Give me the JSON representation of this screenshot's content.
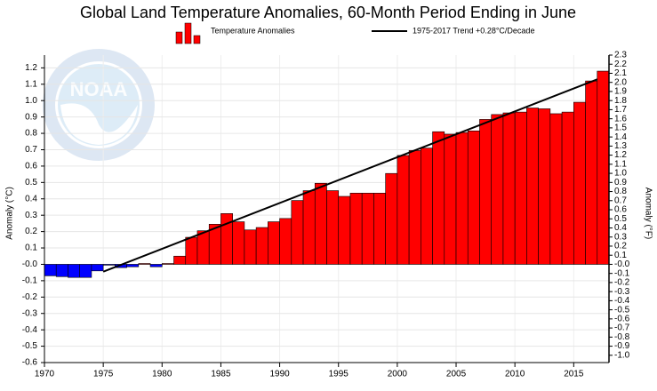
{
  "chart_data": {
    "type": "bar",
    "title": "Global Land Temperature Anomalies, 60-Month Period Ending in June",
    "watermark": "NOAA",
    "ylabel": "Anomaly (°C)",
    "y2label": "Anomaly (°F)",
    "x": [
      1970,
      1971,
      1972,
      1973,
      1974,
      1975,
      1976,
      1977,
      1978,
      1979,
      1980,
      1981,
      1982,
      1983,
      1984,
      1985,
      1986,
      1987,
      1988,
      1989,
      1990,
      1991,
      1992,
      1993,
      1994,
      1995,
      1996,
      1997,
      1998,
      1999,
      2000,
      2001,
      2002,
      2003,
      2004,
      2005,
      2006,
      2007,
      2008,
      2009,
      2010,
      2011,
      2012,
      2013,
      2014,
      2015,
      2016,
      2017
    ],
    "series": [
      {
        "name": "Temperature Anomalies",
        "color": "#ff0000",
        "negative_color": "#0000ff",
        "values": [
          -0.07,
          -0.075,
          -0.08,
          -0.08,
          -0.04,
          -0.005,
          -0.02,
          -0.015,
          0.005,
          -0.015,
          0.005,
          0.05,
          0.165,
          0.205,
          0.245,
          0.31,
          0.26,
          0.21,
          0.225,
          0.26,
          0.28,
          0.39,
          0.45,
          0.495,
          0.45,
          0.415,
          0.435,
          0.435,
          0.435,
          0.555,
          0.665,
          0.695,
          0.71,
          0.81,
          0.795,
          0.805,
          0.815,
          0.885,
          0.915,
          0.925,
          0.93,
          0.955,
          0.95,
          0.92,
          0.93,
          0.99,
          1.12,
          1.18
        ]
      }
    ],
    "trend": {
      "name": "1975-2017 Trend +0.28°C/Decade",
      "color": "#000000",
      "x": [
        1975,
        2017
      ],
      "values": [
        -0.045,
        1.13
      ]
    },
    "xlim": [
      1970,
      2018
    ],
    "xticks": [
      1970,
      1975,
      1980,
      1985,
      1990,
      1995,
      2000,
      2005,
      2010,
      2015
    ],
    "ylim": [
      -0.6,
      1.278
    ],
    "yticks": [
      -0.6,
      -0.5,
      -0.4,
      -0.3,
      -0.2,
      -0.1,
      {
        "value": 0,
        "label": "-0.0"
      },
      0.1,
      0.2,
      0.3,
      0.4,
      0.5,
      0.6,
      0.7,
      0.8,
      0.9,
      {
        "value": 1,
        "label": "1.0"
      },
      1.1,
      1.2
    ],
    "y2lim": [
      -1.08,
      2.3
    ],
    "y2ticks": [
      {
        "value": -1,
        "label": "-1.0"
      },
      -0.9,
      -0.8,
      -0.7,
      -0.6,
      -0.5,
      -0.4,
      -0.3,
      -0.2,
      -0.1,
      {
        "value": 0,
        "label": "-0.0"
      },
      0.1,
      0.2,
      0.3,
      0.4,
      0.5,
      0.6,
      0.7,
      0.8,
      0.9,
      {
        "value": 1,
        "label": "1.0"
      },
      1.1,
      1.2,
      1.3,
      1.4,
      1.5,
      1.6,
      1.7,
      1.8,
      1.9,
      {
        "value": 2,
        "label": "2.0"
      },
      2.1,
      2.2,
      2.3
    ],
    "grid": true
  }
}
